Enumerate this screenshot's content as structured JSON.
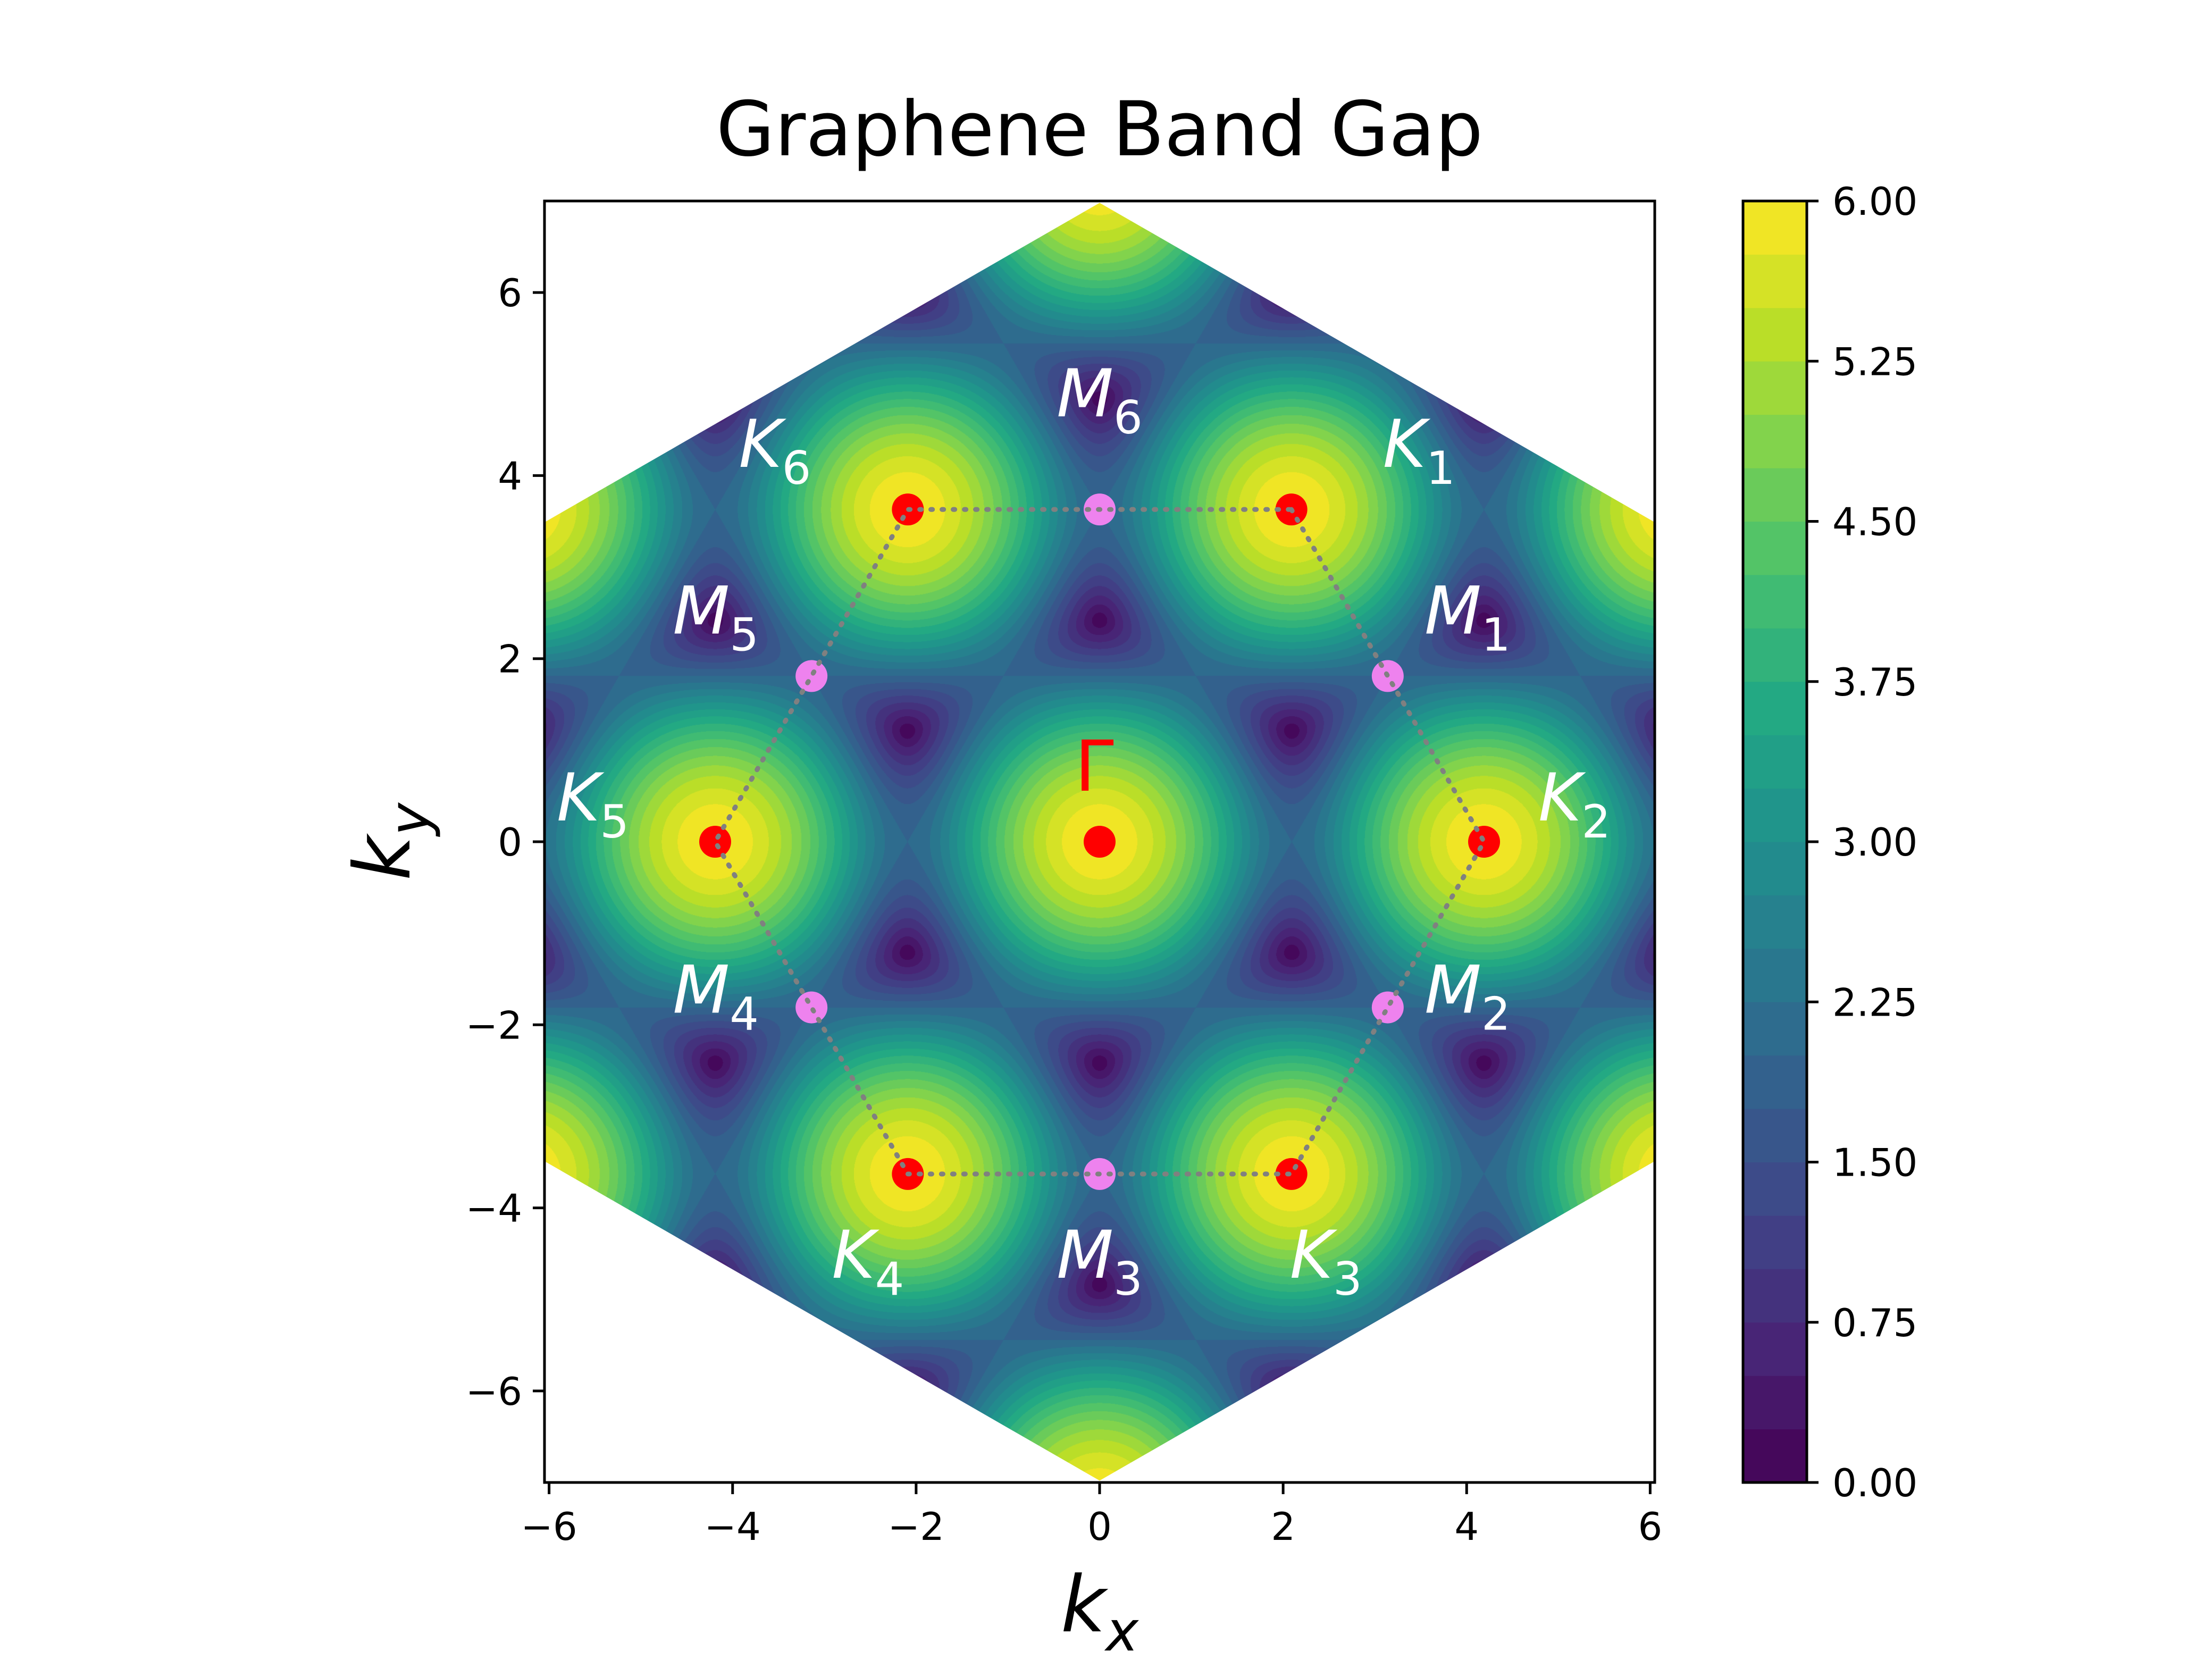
{
  "chart_data": {
    "type": "heatmap",
    "title": "Graphene Band Gap",
    "xlabel": "k_x",
    "ylabel": "k_y",
    "xlim": [
      -6.05,
      6.05
    ],
    "ylim": [
      -7.0,
      7.0
    ],
    "xticks": [
      -6,
      -4,
      -2,
      0,
      2,
      4,
      6
    ],
    "xtick_labels": [
      "−6",
      "−4",
      "−2",
      "0",
      "2",
      "4",
      "6"
    ],
    "yticks": [
      -6,
      -4,
      -2,
      0,
      2,
      4,
      6
    ],
    "ytick_labels": [
      "−6",
      "−4",
      "−2",
      "0",
      "2",
      "4",
      "6"
    ],
    "colorbar": {
      "min": 0.0,
      "max": 6.0,
      "ticks": [
        0.0,
        0.75,
        1.5,
        2.25,
        3.0,
        3.75,
        4.5,
        5.25,
        6.0
      ],
      "tick_labels": [
        "0.00",
        "0.75",
        "1.50",
        "2.25",
        "3.00",
        "3.75",
        "4.50",
        "5.25",
        "6.00"
      ],
      "colormap": "viridis",
      "levels": 24
    },
    "brillouin_zone_boundary": [
      [
        6.05,
        3.49
      ],
      [
        0,
        6.98
      ],
      [
        -6.05,
        3.49
      ],
      [
        -6.05,
        -3.49
      ],
      [
        0,
        -6.98
      ],
      [
        6.05,
        -3.49
      ]
    ],
    "gamma_point": {
      "label": "Γ",
      "x": 0,
      "y": 0
    },
    "k_points": [
      {
        "label": "K",
        "sub": "1",
        "x": 2.09,
        "y": 3.63
      },
      {
        "label": "K",
        "sub": "2",
        "x": 4.19,
        "y": 0
      },
      {
        "label": "K",
        "sub": "3",
        "x": 2.09,
        "y": -3.63
      },
      {
        "label": "K",
        "sub": "4",
        "x": -2.09,
        "y": -3.63
      },
      {
        "label": "K",
        "sub": "5",
        "x": -4.19,
        "y": 0
      },
      {
        "label": "K",
        "sub": "6",
        "x": -2.09,
        "y": 3.63
      }
    ],
    "m_points": [
      {
        "label": "M",
        "sub": "1",
        "x": 3.14,
        "y": 1.81
      },
      {
        "label": "M",
        "sub": "2",
        "x": 3.14,
        "y": -1.81
      },
      {
        "label": "M",
        "sub": "3",
        "x": 0,
        "y": -3.63
      },
      {
        "label": "M",
        "sub": "4",
        "x": -3.14,
        "y": -1.81
      },
      {
        "label": "M",
        "sub": "5",
        "x": -3.14,
        "y": 1.81
      },
      {
        "label": "M",
        "sub": "6",
        "x": 0,
        "y": 3.63
      }
    ],
    "colors": {
      "k_point": "#ff0000",
      "m_point": "#ee82ee",
      "gamma_point": "#ff0000",
      "gamma_label": "#ff0000",
      "point_labels": "#ffffff",
      "path_line": "#808080"
    }
  }
}
